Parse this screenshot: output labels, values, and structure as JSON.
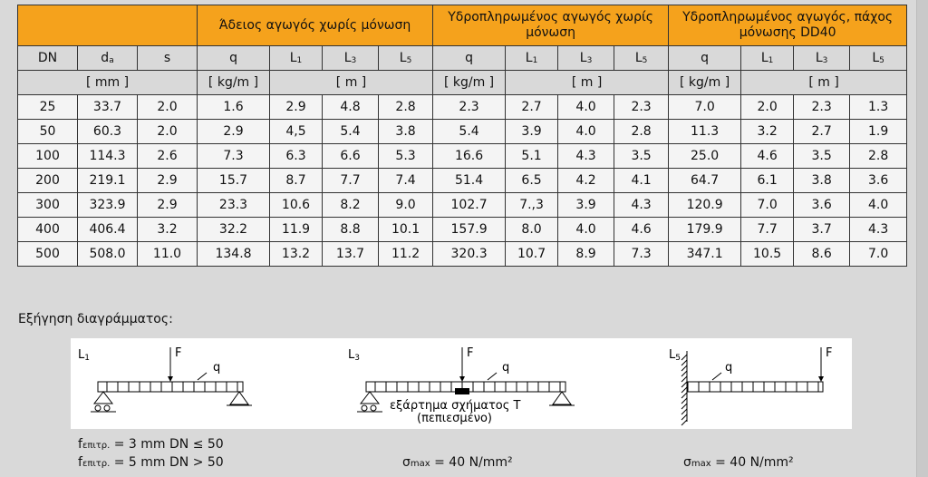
{
  "table": {
    "group_headers": [
      "Άδειος αγωγός χωρίς μόνωση",
      "Υδροπληρωμένος αγωγός χωρίς μόνωση",
      "Υδροπληρωμένος αγωγός, πάχος μόνωσης DD40"
    ],
    "columns": [
      "DN",
      "d",
      "a",
      "s",
      "q",
      "L",
      "1",
      "L",
      "3",
      "L",
      "5",
      "q",
      "L",
      "1",
      "L",
      "3",
      "L",
      "5",
      "q",
      "L",
      "1",
      "L",
      "3",
      "L",
      "5"
    ],
    "units": [
      "[ mm ]",
      "[ kg/m ]",
      "[ m ]",
      "[ kg/m ]",
      "[ m ]",
      "[ kg/m ]",
      "[ m ]"
    ],
    "rows": [
      [
        "25",
        "33.7",
        "2.0",
        "1.6",
        "2.9",
        "4.8",
        "2.8",
        "2.3",
        "2.7",
        "4.0",
        "2.3",
        "7.0",
        "2.0",
        "2.3",
        "1.3"
      ],
      [
        "50",
        "60.3",
        "2.0",
        "2.9",
        "4,5",
        "5.4",
        "3.8",
        "5.4",
        "3.9",
        "4.0",
        "2.8",
        "11.3",
        "3.2",
        "2.7",
        "1.9"
      ],
      [
        "100",
        "114.3",
        "2.6",
        "7.3",
        "6.3",
        "6.6",
        "5.3",
        "16.6",
        "5.1",
        "4.3",
        "3.5",
        "25.0",
        "4.6",
        "3.5",
        "2.8"
      ],
      [
        "200",
        "219.1",
        "2.9",
        "15.7",
        "8.7",
        "7.7",
        "7.4",
        "51.4",
        "6.5",
        "4.2",
        "4.1",
        "64.7",
        "6.1",
        "3.8",
        "3.6"
      ],
      [
        "300",
        "323.9",
        "2.9",
        "23.3",
        "10.6",
        "8.2",
        "9.0",
        "102.7",
        "7.,3",
        "3.9",
        "4.3",
        "120.9",
        "7.0",
        "3.6",
        "4.0"
      ],
      [
        "400",
        "406.4",
        "3.2",
        "32.2",
        "11.9",
        "8.8",
        "10.1",
        "157.9",
        "8.0",
        "4.0",
        "4.6",
        "179.9",
        "7.7",
        "3.7",
        "4.3"
      ],
      [
        "500",
        "508.0",
        "11.0",
        "134.8",
        "13.2",
        "13.7",
        "11.2",
        "320.3",
        "10.7",
        "8.9",
        "7.3",
        "347.1",
        "10.5",
        "8.6",
        "7.0"
      ]
    ]
  },
  "legend": {
    "title": "Εξήγηση διαγράμματος:",
    "labels": [
      "L",
      "1",
      "F",
      "q",
      "L",
      "3",
      "F",
      "q",
      "εξάρτημα σχήματος Τ",
      "(πεπιεσμένο)",
      "L",
      "5",
      "q",
      "F"
    ]
  },
  "formulas": {
    "f_symbol": "f",
    "f_sub": "επιτρ.",
    "f1_rest": " = 3 mm DN ≤ 50",
    "f2_rest": " = 5 mm DN > 50",
    "sigma_symbol": "σ",
    "sigma_sub": "max",
    "sigma_rest": " = 40 N/mm²"
  },
  "colors": {
    "header_orange": "#f5a21c",
    "panel_grey": "#d9d9d9",
    "cell_white": "#f4f4f4"
  }
}
